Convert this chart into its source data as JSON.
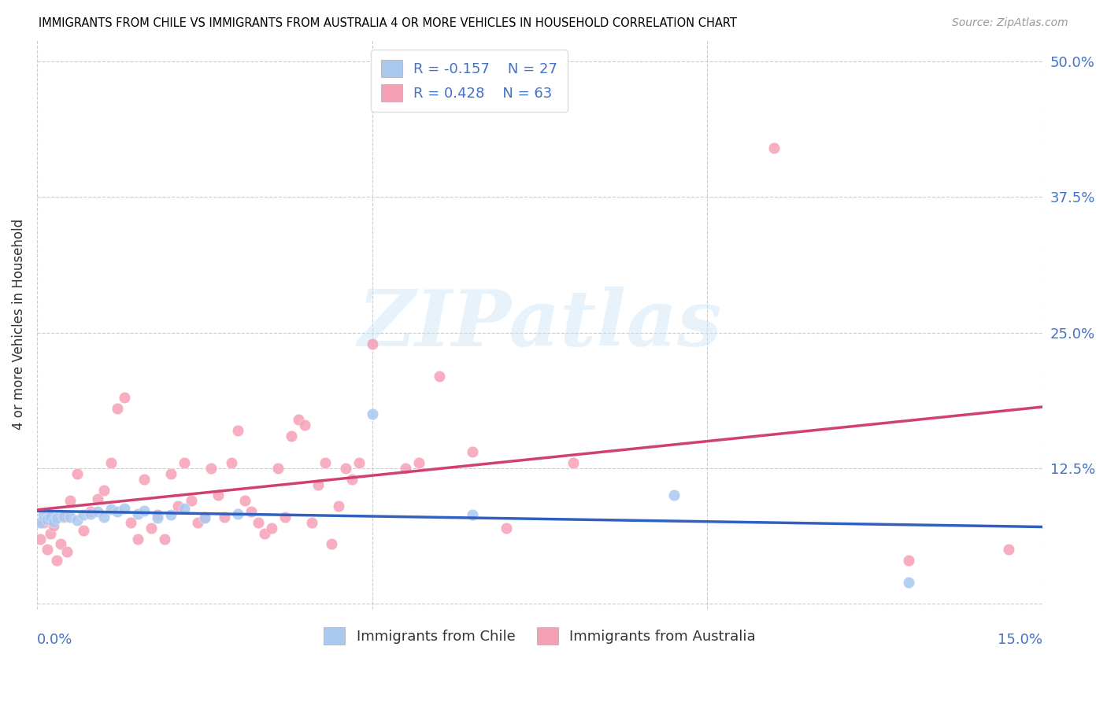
{
  "title": "IMMIGRANTS FROM CHILE VS IMMIGRANTS FROM AUSTRALIA 4 OR MORE VEHICLES IN HOUSEHOLD CORRELATION CHART",
  "source": "Source: ZipAtlas.com",
  "ylabel": "4 or more Vehicles in Household",
  "right_yticks": [
    0.0,
    0.125,
    0.25,
    0.375,
    0.5
  ],
  "right_yticklabels": [
    "",
    "12.5%",
    "25.0%",
    "37.5%",
    "50.0%"
  ],
  "xlim": [
    0.0,
    0.15
  ],
  "ylim": [
    -0.005,
    0.52
  ],
  "legend_r_chile": "-0.157",
  "legend_n_chile": "27",
  "legend_r_australia": "0.428",
  "legend_n_australia": "63",
  "chile_color": "#aac8f0",
  "australia_color": "#f5a0b5",
  "chile_line_color": "#3060c0",
  "australia_line_color": "#d04070",
  "watermark": "ZIPatlas",
  "chile_points": [
    [
      0.0005,
      0.075
    ],
    [
      0.001,
      0.082
    ],
    [
      0.0015,
      0.078
    ],
    [
      0.002,
      0.08
    ],
    [
      0.0025,
      0.076
    ],
    [
      0.003,
      0.079
    ],
    [
      0.004,
      0.081
    ],
    [
      0.005,
      0.08
    ],
    [
      0.006,
      0.077
    ],
    [
      0.007,
      0.082
    ],
    [
      0.008,
      0.083
    ],
    [
      0.009,
      0.085
    ],
    [
      0.01,
      0.08
    ],
    [
      0.011,
      0.087
    ],
    [
      0.012,
      0.085
    ],
    [
      0.013,
      0.088
    ],
    [
      0.015,
      0.083
    ],
    [
      0.016,
      0.086
    ],
    [
      0.018,
      0.079
    ],
    [
      0.02,
      0.082
    ],
    [
      0.022,
      0.088
    ],
    [
      0.025,
      0.079
    ],
    [
      0.03,
      0.083
    ],
    [
      0.05,
      0.175
    ],
    [
      0.065,
      0.082
    ],
    [
      0.095,
      0.1
    ],
    [
      0.13,
      0.02
    ]
  ],
  "australia_points": [
    [
      0.0005,
      0.06
    ],
    [
      0.001,
      0.075
    ],
    [
      0.0015,
      0.05
    ],
    [
      0.002,
      0.065
    ],
    [
      0.0025,
      0.072
    ],
    [
      0.003,
      0.04
    ],
    [
      0.0035,
      0.055
    ],
    [
      0.004,
      0.08
    ],
    [
      0.0045,
      0.048
    ],
    [
      0.005,
      0.095
    ],
    [
      0.006,
      0.12
    ],
    [
      0.007,
      0.068
    ],
    [
      0.008,
      0.085
    ],
    [
      0.009,
      0.097
    ],
    [
      0.01,
      0.105
    ],
    [
      0.011,
      0.13
    ],
    [
      0.012,
      0.18
    ],
    [
      0.013,
      0.19
    ],
    [
      0.014,
      0.075
    ],
    [
      0.015,
      0.06
    ],
    [
      0.016,
      0.115
    ],
    [
      0.017,
      0.07
    ],
    [
      0.018,
      0.082
    ],
    [
      0.019,
      0.06
    ],
    [
      0.02,
      0.12
    ],
    [
      0.021,
      0.09
    ],
    [
      0.022,
      0.13
    ],
    [
      0.023,
      0.095
    ],
    [
      0.024,
      0.075
    ],
    [
      0.025,
      0.08
    ],
    [
      0.026,
      0.125
    ],
    [
      0.027,
      0.1
    ],
    [
      0.028,
      0.08
    ],
    [
      0.029,
      0.13
    ],
    [
      0.03,
      0.16
    ],
    [
      0.031,
      0.095
    ],
    [
      0.032,
      0.085
    ],
    [
      0.033,
      0.075
    ],
    [
      0.034,
      0.065
    ],
    [
      0.035,
      0.07
    ],
    [
      0.036,
      0.125
    ],
    [
      0.037,
      0.08
    ],
    [
      0.038,
      0.155
    ],
    [
      0.039,
      0.17
    ],
    [
      0.04,
      0.165
    ],
    [
      0.041,
      0.075
    ],
    [
      0.042,
      0.11
    ],
    [
      0.043,
      0.13
    ],
    [
      0.044,
      0.055
    ],
    [
      0.045,
      0.09
    ],
    [
      0.046,
      0.125
    ],
    [
      0.047,
      0.115
    ],
    [
      0.048,
      0.13
    ],
    [
      0.05,
      0.24
    ],
    [
      0.055,
      0.125
    ],
    [
      0.057,
      0.13
    ],
    [
      0.06,
      0.21
    ],
    [
      0.065,
      0.14
    ],
    [
      0.07,
      0.07
    ],
    [
      0.08,
      0.13
    ],
    [
      0.11,
      0.42
    ],
    [
      0.13,
      0.04
    ],
    [
      0.145,
      0.05
    ]
  ]
}
